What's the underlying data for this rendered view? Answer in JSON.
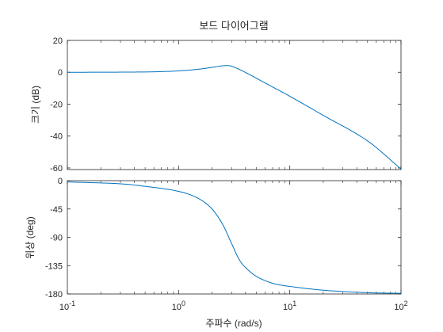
{
  "chart_data": {
    "type": "line",
    "title": "보드 다이어그램",
    "xlabel": "주파수  (rad/s)",
    "x_scale": "log",
    "xlim": [
      0.1,
      100
    ],
    "x_ticks": [
      {
        "base": "10",
        "exp": "-1"
      },
      {
        "base": "10",
        "exp": "0"
      },
      {
        "base": "10",
        "exp": "1"
      },
      {
        "base": "10",
        "exp": "2"
      }
    ],
    "line_color": "#0072BD",
    "magnitude": {
      "ylabel": "크기 (dB)",
      "ylim": [
        -61,
        20
      ],
      "yticks": [
        "20",
        "0",
        "-20",
        "-40",
        "-60"
      ],
      "grid": false,
      "x": [
        0.1,
        0.3,
        0.6,
        1.0,
        1.5,
        2.0,
        2.5,
        2.8,
        3.0,
        3.5,
        4.0,
        5.0,
        7.0,
        10,
        20,
        50,
        100
      ],
      "y": [
        0.0,
        0.1,
        0.3,
        0.9,
        1.9,
        3.1,
        4.1,
        4.2,
        3.8,
        1.9,
        -0.1,
        -3.7,
        -9.2,
        -15.0,
        -27.0,
        -43.0,
        -60.7
      ]
    },
    "phase": {
      "ylabel": "위상 (deg)",
      "ylim": [
        -180,
        0
      ],
      "yticks": [
        "0",
        "-45",
        "-90",
        "-135",
        "-180"
      ],
      "grid": false,
      "x": [
        0.1,
        0.3,
        0.5,
        1.0,
        1.5,
        2.0,
        2.5,
        3.0,
        3.5,
        4.0,
        5.0,
        7.0,
        10,
        20,
        50,
        100
      ],
      "y": [
        -2,
        -5,
        -9,
        -17,
        -28,
        -45,
        -70,
        -100,
        -125,
        -138,
        -152,
        -163,
        -168,
        -174,
        -178,
        -179
      ]
    }
  }
}
